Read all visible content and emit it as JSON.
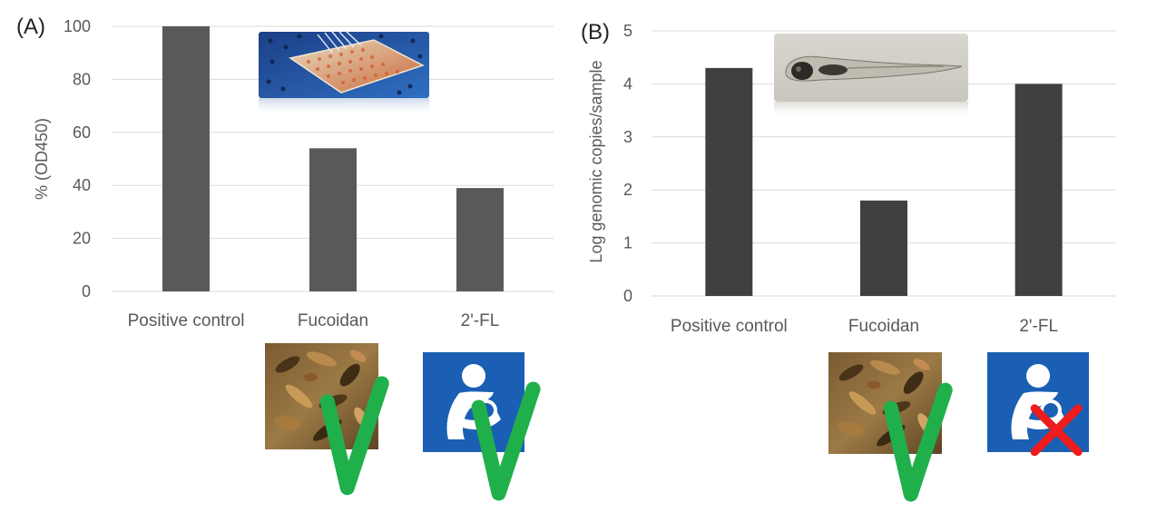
{
  "chart_data": [
    {
      "panel_label": "(A)",
      "type": "bar",
      "categories": [
        "Positive control",
        "Fucoidan",
        "2'-FL"
      ],
      "values": [
        100,
        54,
        39
      ],
      "ylabel": "% (OD450)",
      "ylim": [
        0,
        100
      ],
      "yticks": [
        "0",
        "20",
        "40",
        "60",
        "80",
        "100"
      ],
      "grid": true,
      "bar_color": "#595959",
      "markers": [
        {
          "category": "Fucoidan",
          "image": "seaweed",
          "mark": "check"
        },
        {
          "category": "2'-FL",
          "image": "breastfeeding-sign",
          "mark": "check"
        }
      ]
    },
    {
      "panel_label": "(B)",
      "type": "bar",
      "categories": [
        "Positive control",
        "Fucoidan",
        "2'-FL"
      ],
      "values": [
        4.3,
        1.8,
        4.0
      ],
      "ylabel": "Log genomic copies/sample",
      "ylim": [
        0,
        5
      ],
      "yticks": [
        "0",
        "1",
        "2",
        "3",
        "4",
        "5"
      ],
      "grid": true,
      "bar_color": "#404040",
      "markers": [
        {
          "category": "Fucoidan",
          "image": "seaweed",
          "mark": "check"
        },
        {
          "category": "2'-FL",
          "image": "breastfeeding-sign",
          "mark": "cross"
        }
      ]
    }
  ],
  "colors": {
    "check": "#1fb04c",
    "cross": "#ee1c1c",
    "sign_blue": "#1a5fb4",
    "grid": "#d9d9d9",
    "text": "#595959"
  }
}
